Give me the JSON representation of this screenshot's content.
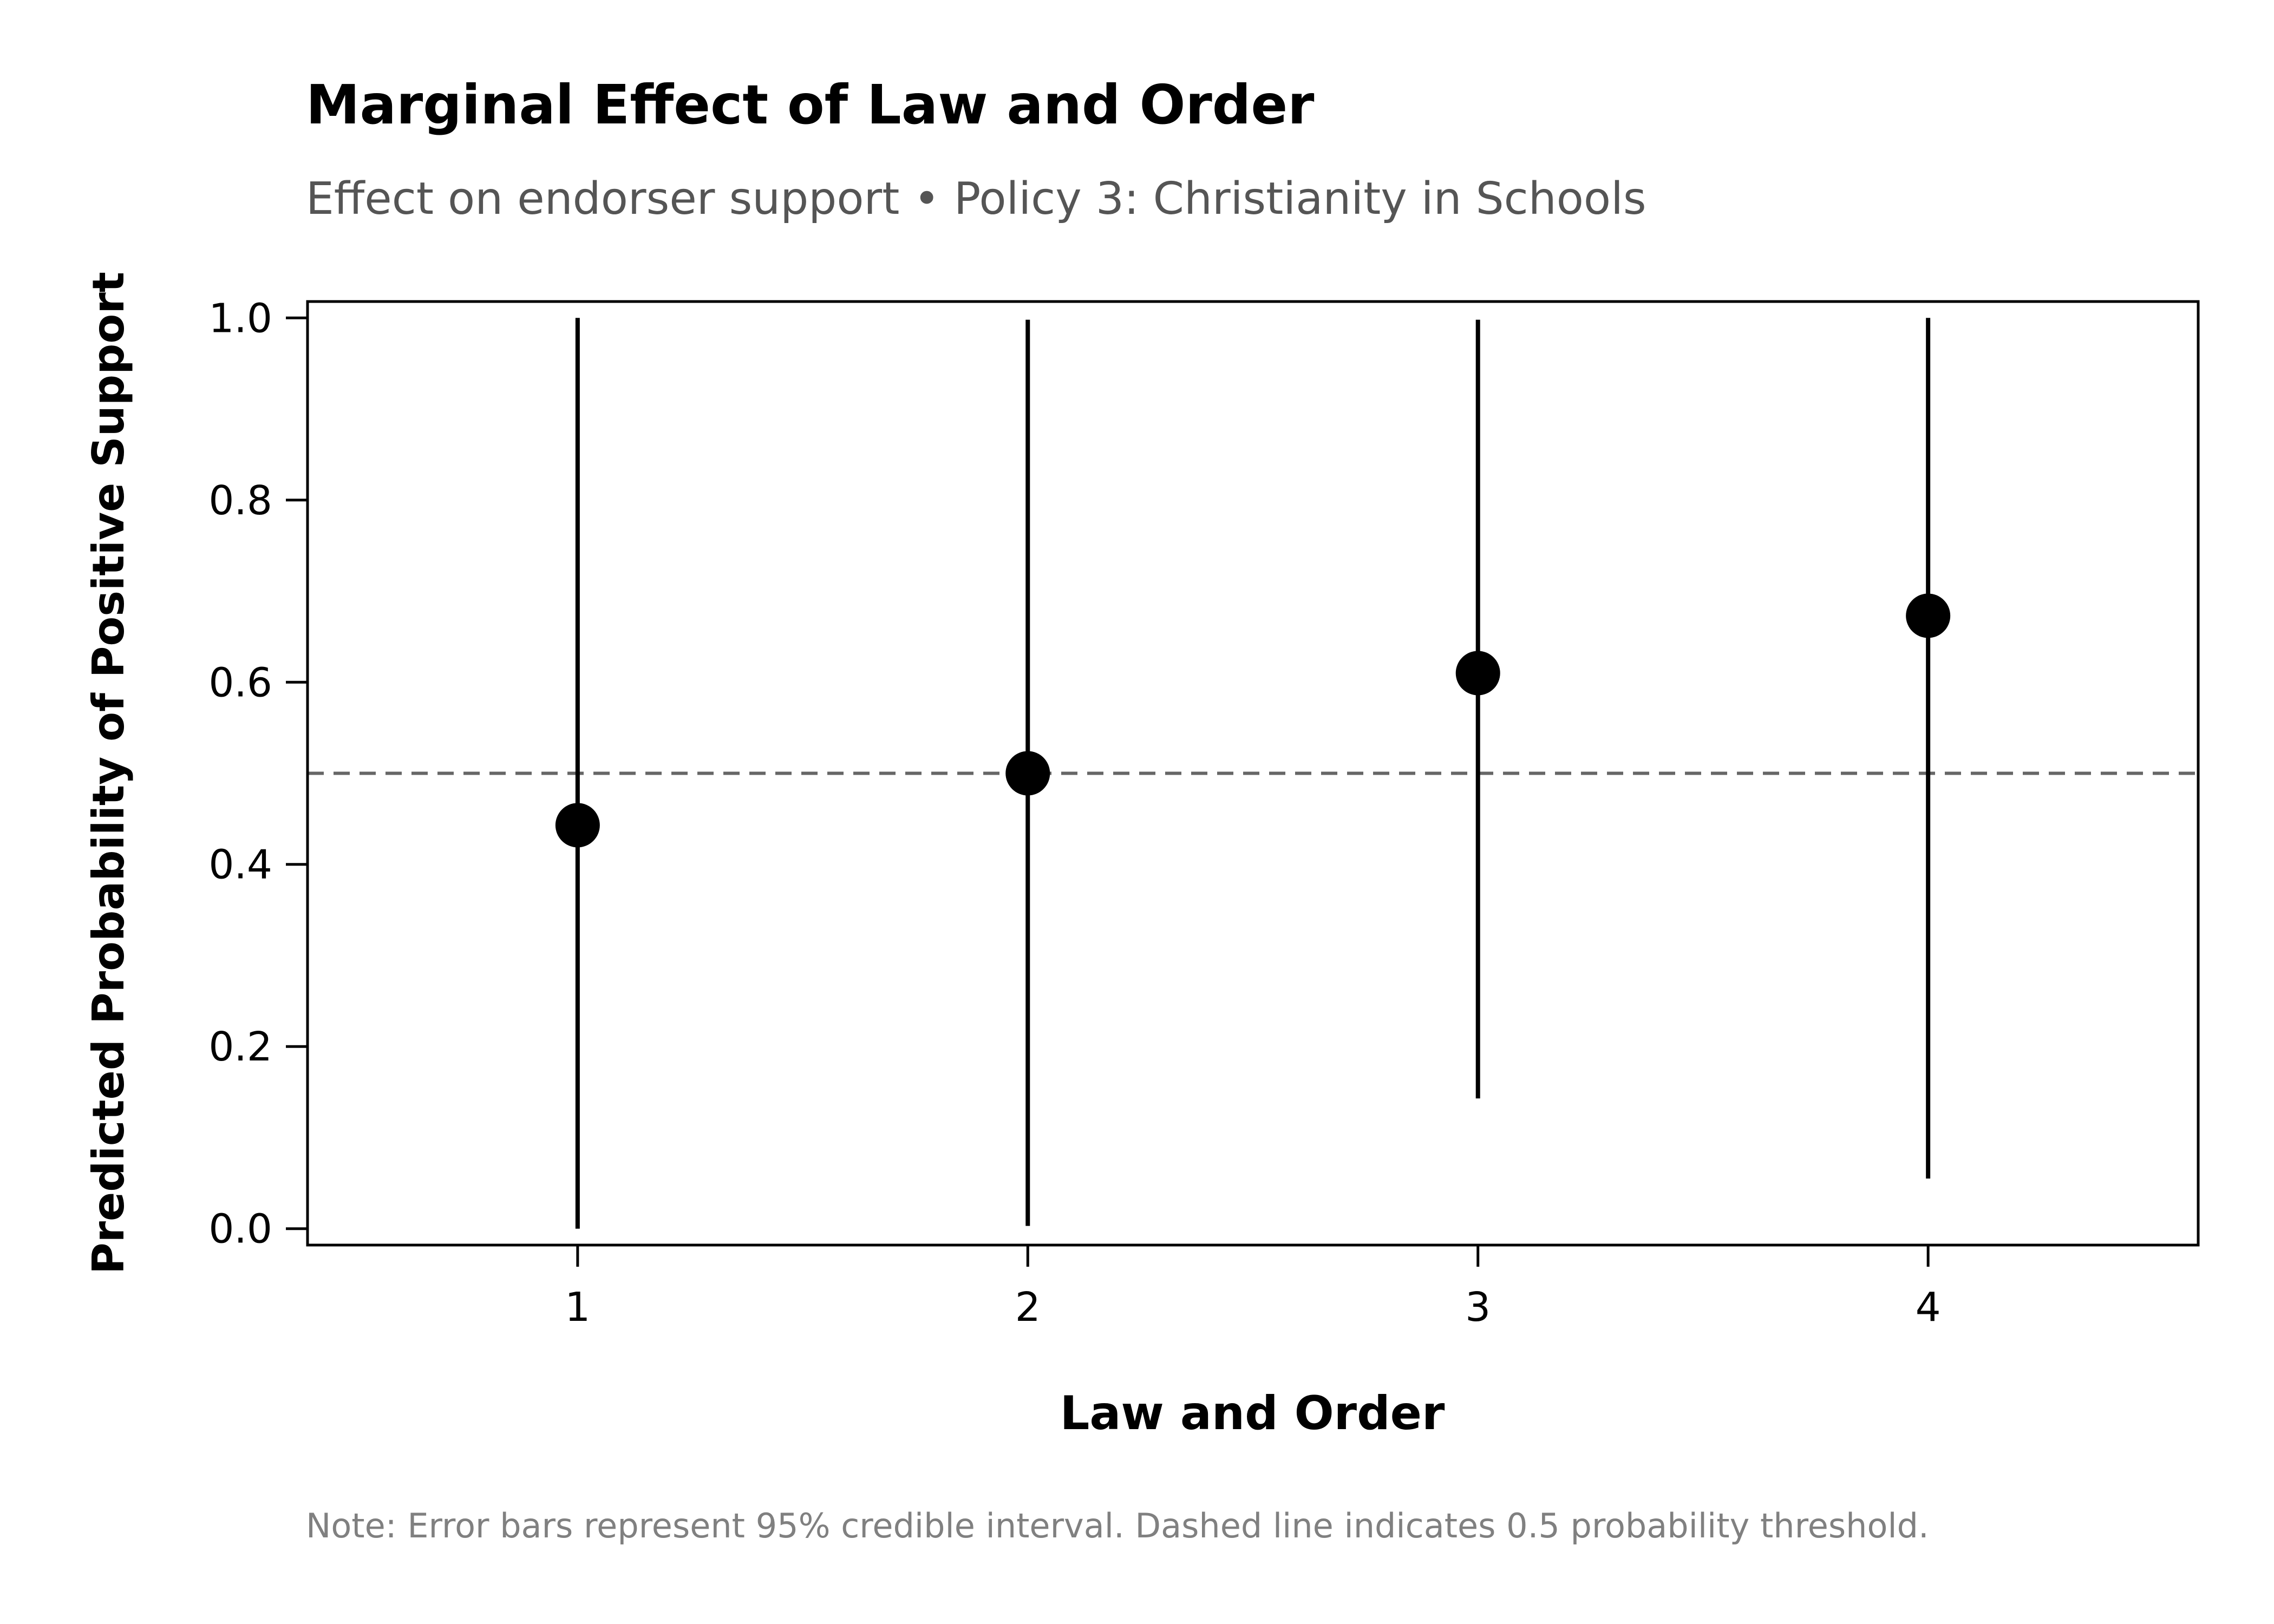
{
  "chart_data": {
    "type": "scatter",
    "title": "Marginal Effect of Law and Order",
    "subtitle": "Effect on endorser support • Policy 3: Christianity in Schools",
    "xlabel": "Law and Order",
    "ylabel": "Predicted Probability of Positive Support",
    "note": "Note: Error bars represent 95% credible interval. Dashed line indicates 0.5 probability threshold.",
    "xlim": [
      0.4,
      4.6
    ],
    "ylim": [
      -0.018,
      1.018
    ],
    "x_ticks": [
      1,
      2,
      3,
      4
    ],
    "x_tick_labels": [
      "1",
      "2",
      "3",
      "4"
    ],
    "y_ticks": [
      0.0,
      0.2,
      0.4,
      0.6,
      0.8,
      1.0
    ],
    "y_tick_labels": [
      "0.0",
      "0.2",
      "0.4",
      "0.6",
      "0.8",
      "1.0"
    ],
    "reference_line": 0.5,
    "grid": false,
    "legend": "none",
    "points": [
      {
        "x": 1,
        "y": 0.443,
        "lower": 0.0,
        "upper": 1.0
      },
      {
        "x": 2,
        "y": 0.5,
        "lower": 0.003,
        "upper": 0.998
      },
      {
        "x": 3,
        "y": 0.61,
        "lower": 0.143,
        "upper": 0.998
      },
      {
        "x": 4,
        "y": 0.673,
        "lower": 0.055,
        "upper": 1.0
      }
    ],
    "colors": {
      "marker": "#000000",
      "errorbar": "#000000",
      "reference_line": "#666666",
      "subtitle": "#555555",
      "note": "#808080"
    }
  }
}
